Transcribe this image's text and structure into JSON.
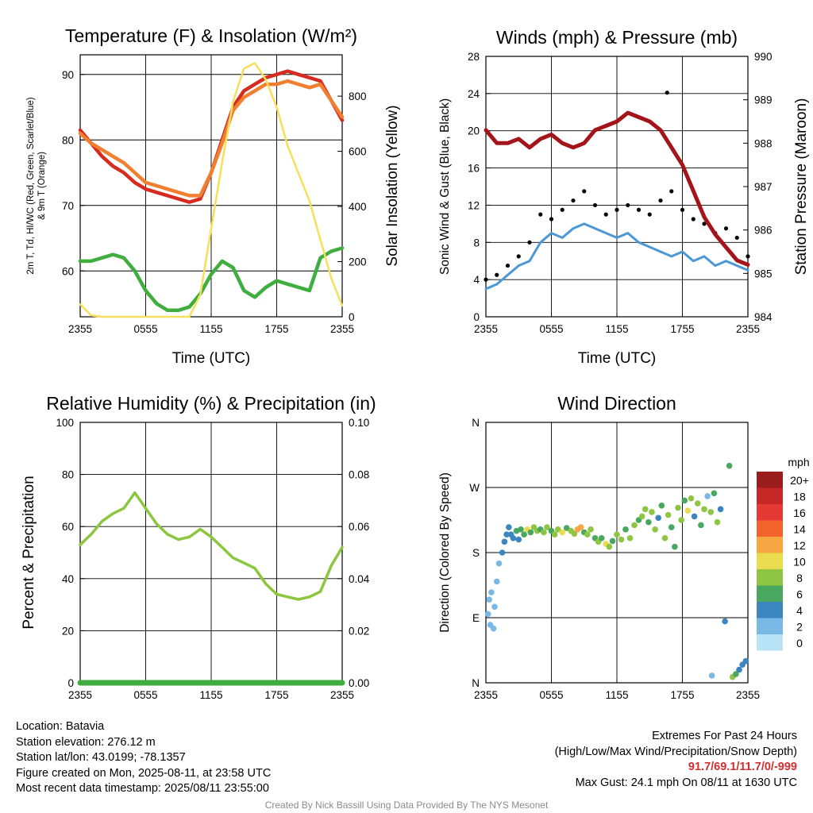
{
  "chart_data": [
    {
      "type": "line",
      "title": "Temperature (F) & Insolation (W/m²)",
      "xlabel": "Time (UTC)",
      "ylabel": "2m T, Td, HI/WC (Red, Green, Scarlet/Blue) & 9m T (Orange)",
      "y2label": "Solar Insolation (Yellow)",
      "x_ticks": [
        "2355",
        "0555",
        "1155",
        "1755",
        "2355"
      ],
      "ylim": [
        53,
        93
      ],
      "y_ticks": [
        60,
        70,
        80,
        90
      ],
      "y2lim": [
        0,
        950
      ],
      "y2_ticks": [
        0,
        200,
        400,
        600,
        800
      ],
      "grid": true,
      "series": [
        {
          "name": "2m T",
          "color": "#d62c1f",
          "axis": "left",
          "x": [
            0,
            1,
            2,
            3,
            4,
            5,
            6,
            7,
            8,
            9,
            10,
            11,
            12,
            13,
            14,
            15,
            16,
            17,
            18,
            19,
            20,
            21,
            22,
            23,
            24
          ],
          "values": [
            81.5,
            79.5,
            77.5,
            76.0,
            75.0,
            73.5,
            72.5,
            72.0,
            71.5,
            71.0,
            70.5,
            71.0,
            75.0,
            80.0,
            85.0,
            87.5,
            88.5,
            89.5,
            90.0,
            90.5,
            90.0,
            89.5,
            89.0,
            86.0,
            83.0
          ]
        },
        {
          "name": "9m T",
          "color": "#f08030",
          "axis": "left",
          "x": [
            0,
            1,
            2,
            3,
            4,
            5,
            6,
            7,
            8,
            9,
            10,
            11,
            12,
            13,
            14,
            15,
            16,
            17,
            18,
            19,
            20,
            21,
            22,
            23,
            24
          ],
          "values": [
            81.0,
            79.5,
            78.5,
            77.5,
            76.5,
            75.0,
            73.5,
            73.0,
            72.5,
            72.0,
            71.5,
            71.5,
            75.0,
            79.5,
            84.5,
            86.5,
            87.5,
            88.5,
            88.5,
            89.0,
            88.5,
            88.0,
            88.5,
            86.0,
            83.5
          ]
        },
        {
          "name": "2m Td",
          "color": "#3fae3f",
          "axis": "left",
          "x": [
            0,
            1,
            2,
            3,
            4,
            5,
            6,
            7,
            8,
            9,
            10,
            11,
            12,
            13,
            14,
            15,
            16,
            17,
            18,
            19,
            20,
            21,
            22,
            23,
            24
          ],
          "values": [
            61.5,
            61.5,
            62.0,
            62.5,
            62.0,
            60.0,
            57.0,
            55.0,
            54.0,
            54.0,
            54.5,
            56.5,
            59.5,
            61.5,
            60.5,
            57.0,
            56.0,
            57.5,
            58.5,
            58.0,
            57.5,
            57.0,
            62.0,
            63.0,
            63.5
          ]
        },
        {
          "name": "Solar Insolation",
          "color": "#f7df5a",
          "axis": "right",
          "x": [
            0,
            1,
            2,
            3,
            4,
            5,
            6,
            7,
            8,
            9,
            10,
            11,
            12,
            13,
            14,
            15,
            16,
            17,
            18,
            19,
            20,
            21,
            22,
            23,
            24
          ],
          "values": [
            45,
            5,
            0,
            0,
            0,
            0,
            0,
            0,
            0,
            0,
            0,
            80,
            320,
            560,
            780,
            900,
            920,
            860,
            760,
            620,
            520,
            420,
            280,
            140,
            40
          ]
        }
      ]
    },
    {
      "type": "line",
      "title": "Winds (mph) & Pressure (mb)",
      "xlabel": "Time (UTC)",
      "ylabel": "Sonic Wind & Gust (Blue, Black)",
      "y2label": "Station Pressure (Maroon)",
      "x_ticks": [
        "2355",
        "0555",
        "1155",
        "1755",
        "2355"
      ],
      "ylim": [
        0,
        28
      ],
      "y_ticks": [
        0,
        4,
        8,
        12,
        16,
        20,
        24,
        28
      ],
      "y2lim": [
        984,
        990
      ],
      "y2_ticks": [
        984,
        985,
        986,
        987,
        988,
        989,
        990
      ],
      "grid": true,
      "series": [
        {
          "name": "Sonic Wind",
          "color": "#4c98d6",
          "axis": "left",
          "x": [
            0,
            1,
            2,
            3,
            4,
            5,
            6,
            7,
            8,
            9,
            10,
            11,
            12,
            13,
            14,
            15,
            16,
            17,
            18,
            19,
            20,
            21,
            22,
            23,
            24
          ],
          "values": [
            3.0,
            3.5,
            4.5,
            5.5,
            6.0,
            8.0,
            9.0,
            8.5,
            9.5,
            10.0,
            9.5,
            9.0,
            8.5,
            9.0,
            8.0,
            7.5,
            7.0,
            6.5,
            7.0,
            6.0,
            6.5,
            5.5,
            6.0,
            5.5,
            5.0
          ]
        },
        {
          "name": "Gust",
          "color": "#000000",
          "axis": "left",
          "x": [
            0,
            1,
            2,
            3,
            4,
            5,
            6,
            7,
            8,
            9,
            10,
            11,
            12,
            13,
            14,
            15,
            16,
            17,
            18,
            19,
            20,
            21,
            22,
            23,
            24
          ],
          "values": [
            4.0,
            4.5,
            5.5,
            6.5,
            8.0,
            11.0,
            10.5,
            11.5,
            12.5,
            13.5,
            12.0,
            11.0,
            11.5,
            12.0,
            11.5,
            11.0,
            12.5,
            13.5,
            11.5,
            10.5,
            10.0,
            9.0,
            9.5,
            8.5,
            6.5
          ]
        },
        {
          "name": "Station Pressure",
          "color": "#a3151a",
          "axis": "right",
          "x": [
            0,
            1,
            2,
            3,
            4,
            5,
            6,
            7,
            8,
            9,
            10,
            11,
            12,
            13,
            14,
            15,
            16,
            17,
            18,
            19,
            20,
            21,
            22,
            23,
            24
          ],
          "values": [
            988.3,
            988.0,
            988.0,
            988.1,
            987.9,
            988.1,
            988.2,
            988.0,
            987.9,
            988.0,
            988.3,
            988.4,
            988.5,
            988.7,
            988.6,
            988.5,
            988.3,
            987.9,
            987.5,
            986.9,
            986.3,
            985.9,
            985.6,
            985.3,
            985.2
          ]
        }
      ],
      "max_gust_point": {
        "x": 16.6,
        "y": 24.1
      }
    },
    {
      "type": "line",
      "title": "Relative Humidity (%) & Precipitation (in)",
      "ylabel": "Percent & Precipitation",
      "x_ticks": [
        "2355",
        "0555",
        "1155",
        "1755",
        "2355"
      ],
      "ylim": [
        0,
        100
      ],
      "y_ticks": [
        0,
        20,
        40,
        60,
        80,
        100
      ],
      "y2lim": [
        0,
        0.1
      ],
      "y2_ticks": [
        "0.00",
        "0.02",
        "0.04",
        "0.06",
        "0.08",
        "0.10"
      ],
      "grid": true,
      "series": [
        {
          "name": "Relative Humidity",
          "color": "#8cc63e",
          "axis": "left",
          "x": [
            0,
            1,
            2,
            3,
            4,
            5,
            6,
            7,
            8,
            9,
            10,
            11,
            12,
            13,
            14,
            15,
            16,
            17,
            18,
            19,
            20,
            21,
            22,
            23,
            24
          ],
          "values": [
            53,
            57,
            62,
            65,
            67,
            73,
            67,
            61,
            57,
            55,
            56,
            59,
            56,
            52,
            48,
            46,
            44,
            38,
            34,
            33,
            32,
            33,
            35,
            45,
            52
          ]
        },
        {
          "name": "Precipitation",
          "color": "#3fae3f",
          "axis": "right",
          "x": [
            0,
            24
          ],
          "values": [
            0,
            0
          ]
        }
      ]
    },
    {
      "type": "scatter",
      "title": "Wind Direction",
      "ylabel": "Direction (Colored By Speed)",
      "x_ticks": [
        "2355",
        "0555",
        "1155",
        "1755",
        "2355"
      ],
      "y_ticks": [
        "N",
        "E",
        "S",
        "W",
        "N"
      ],
      "ylim": [
        0,
        360
      ],
      "grid": true,
      "legend": {
        "title": "mph",
        "labels": [
          "20+",
          "18",
          "16",
          "14",
          "12",
          "10",
          "8",
          "6",
          "4",
          "2",
          "0"
        ],
        "colors": [
          "#9b1c1c",
          "#c62828",
          "#e53935",
          "#f4622b",
          "#f8a544",
          "#e9dc4f",
          "#8ec542",
          "#4aa760",
          "#3b86c0",
          "#7ab8e6",
          "#b9e3f7"
        ]
      },
      "points": [
        {
          "x": 0.2,
          "y": 95,
          "s": 1
        },
        {
          "x": 0.3,
          "y": 115,
          "s": 1
        },
        {
          "x": 0.4,
          "y": 80,
          "s": 1
        },
        {
          "x": 0.5,
          "y": 125,
          "s": 2
        },
        {
          "x": 0.7,
          "y": 75,
          "s": 1
        },
        {
          "x": 0.8,
          "y": 105,
          "s": 2
        },
        {
          "x": 1.0,
          "y": 140,
          "s": 1
        },
        {
          "x": 1.2,
          "y": 165,
          "s": 2
        },
        {
          "x": 1.5,
          "y": 180,
          "s": 3
        },
        {
          "x": 1.7,
          "y": 195,
          "s": 3
        },
        {
          "x": 1.9,
          "y": 205,
          "s": 4
        },
        {
          "x": 2.1,
          "y": 215,
          "s": 4
        },
        {
          "x": 2.3,
          "y": 205,
          "s": 3
        },
        {
          "x": 2.5,
          "y": 200,
          "s": 4
        },
        {
          "x": 2.8,
          "y": 210,
          "s": 5
        },
        {
          "x": 3.0,
          "y": 198,
          "s": 4
        },
        {
          "x": 3.2,
          "y": 212,
          "s": 6
        },
        {
          "x": 3.5,
          "y": 205,
          "s": 5
        },
        {
          "x": 3.8,
          "y": 212,
          "s": 9
        },
        {
          "x": 4.1,
          "y": 208,
          "s": 6
        },
        {
          "x": 4.4,
          "y": 215,
          "s": 8
        },
        {
          "x": 4.7,
          "y": 210,
          "s": 7
        },
        {
          "x": 5.0,
          "y": 212,
          "s": 6
        },
        {
          "x": 5.3,
          "y": 208,
          "s": 8
        },
        {
          "x": 5.6,
          "y": 215,
          "s": 7
        },
        {
          "x": 6.0,
          "y": 210,
          "s": 6
        },
        {
          "x": 6.3,
          "y": 205,
          "s": 8
        },
        {
          "x": 6.6,
          "y": 212,
          "s": 7
        },
        {
          "x": 7.0,
          "y": 208,
          "s": 9
        },
        {
          "x": 7.4,
          "y": 214,
          "s": 6
        },
        {
          "x": 7.8,
          "y": 210,
          "s": 8
        },
        {
          "x": 8.1,
          "y": 206,
          "s": 7
        },
        {
          "x": 8.4,
          "y": 212,
          "s": 12
        },
        {
          "x": 8.7,
          "y": 215,
          "s": 11
        },
        {
          "x": 9.0,
          "y": 208,
          "s": 6
        },
        {
          "x": 9.3,
          "y": 205,
          "s": 8
        },
        {
          "x": 9.6,
          "y": 212,
          "s": 7
        },
        {
          "x": 10.0,
          "y": 200,
          "s": 6
        },
        {
          "x": 10.3,
          "y": 195,
          "s": 8
        },
        {
          "x": 10.6,
          "y": 200,
          "s": 5
        },
        {
          "x": 11.0,
          "y": 192,
          "s": 10
        },
        {
          "x": 11.3,
          "y": 188,
          "s": 7
        },
        {
          "x": 11.6,
          "y": 196,
          "s": 6
        },
        {
          "x": 12.0,
          "y": 205,
          "s": 8
        },
        {
          "x": 12.4,
          "y": 198,
          "s": 7
        },
        {
          "x": 12.8,
          "y": 212,
          "s": 6
        },
        {
          "x": 13.2,
          "y": 200,
          "s": 8
        },
        {
          "x": 13.6,
          "y": 218,
          "s": 7
        },
        {
          "x": 14.0,
          "y": 225,
          "s": 6
        },
        {
          "x": 14.3,
          "y": 230,
          "s": 8
        },
        {
          "x": 14.6,
          "y": 240,
          "s": 7
        },
        {
          "x": 14.9,
          "y": 222,
          "s": 6
        },
        {
          "x": 15.2,
          "y": 236,
          "s": 8
        },
        {
          "x": 15.5,
          "y": 212,
          "s": 7
        },
        {
          "x": 15.8,
          "y": 228,
          "s": 4
        },
        {
          "x": 16.1,
          "y": 245,
          "s": 6
        },
        {
          "x": 16.4,
          "y": 200,
          "s": 8
        },
        {
          "x": 16.7,
          "y": 232,
          "s": 7
        },
        {
          "x": 17.0,
          "y": 215,
          "s": 6
        },
        {
          "x": 17.3,
          "y": 188,
          "s": 6
        },
        {
          "x": 17.6,
          "y": 242,
          "s": 8
        },
        {
          "x": 17.9,
          "y": 225,
          "s": 7
        },
        {
          "x": 18.2,
          "y": 252,
          "s": 6
        },
        {
          "x": 18.5,
          "y": 238,
          "s": 10
        },
        {
          "x": 18.8,
          "y": 255,
          "s": 8
        },
        {
          "x": 19.1,
          "y": 230,
          "s": 4
        },
        {
          "x": 19.4,
          "y": 248,
          "s": 7
        },
        {
          "x": 19.7,
          "y": 218,
          "s": 6
        },
        {
          "x": 20.0,
          "y": 240,
          "s": 8
        },
        {
          "x": 20.3,
          "y": 258,
          "s": 2
        },
        {
          "x": 20.6,
          "y": 236,
          "s": 7
        },
        {
          "x": 20.9,
          "y": 262,
          "s": 6
        },
        {
          "x": 21.2,
          "y": 222,
          "s": 8
        },
        {
          "x": 21.5,
          "y": 240,
          "s": 4
        },
        {
          "x": 21.9,
          "y": 85,
          "s": 4
        },
        {
          "x": 22.3,
          "y": 300,
          "s": 6
        },
        {
          "x": 22.6,
          "y": 8,
          "s": 7
        },
        {
          "x": 22.9,
          "y": 12,
          "s": 6
        },
        {
          "x": 23.2,
          "y": 18,
          "s": 4
        },
        {
          "x": 23.5,
          "y": 25,
          "s": 4
        },
        {
          "x": 23.8,
          "y": 30,
          "s": 4
        },
        {
          "x": 20.7,
          "y": 10,
          "s": 2
        }
      ]
    }
  ],
  "info": {
    "location": "Location: Batavia",
    "elevation": "Station elevation: 276.12 m",
    "latlon": "Station lat/lon: 43.0199; -78.1357",
    "created": "Figure created on Mon, 2025-08-11, at 23:58 UTC",
    "recent": "Most recent data timestamp: 2025/08/11 23:55:00",
    "extremes_title": "Extremes For Past 24 Hours",
    "extremes_desc": "(High/Low/Max Wind/Precipitation/Snow Depth)",
    "extremes_values": "91.7/69.1/11.7/0/-999",
    "max_gust": "Max Gust: 24.1 mph On 08/11 at 1630 UTC"
  },
  "credit": "Created By Nick Bassill Using Data Provided By The NYS Mesonet"
}
